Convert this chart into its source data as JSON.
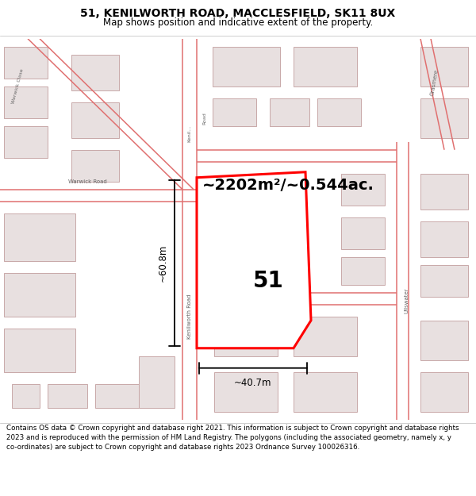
{
  "title": "51, KENILWORTH ROAD, MACCLESFIELD, SK11 8UX",
  "subtitle": "Map shows position and indicative extent of the property.",
  "area_text": "~2202m²/~0.544ac.",
  "property_number": "51",
  "width_label": "~40.7m",
  "height_label": "~60.8m",
  "footer_text": "Contains OS data © Crown copyright and database right 2021. This information is subject to Crown copyright and database rights 2023 and is reproduced with the permission of HM Land Registry. The polygons (including the associated geometry, namely x, y co-ordinates) are subject to Crown copyright and database rights 2023 Ordnance Survey 100026316.",
  "road_color": "#e07070",
  "building_fill": "#e8e0e0",
  "building_stroke": "#c8a8a8",
  "map_bg": "#f2efef",
  "white_bg": "#ffffff",
  "title_fontsize": 10,
  "subtitle_fontsize": 8.5
}
